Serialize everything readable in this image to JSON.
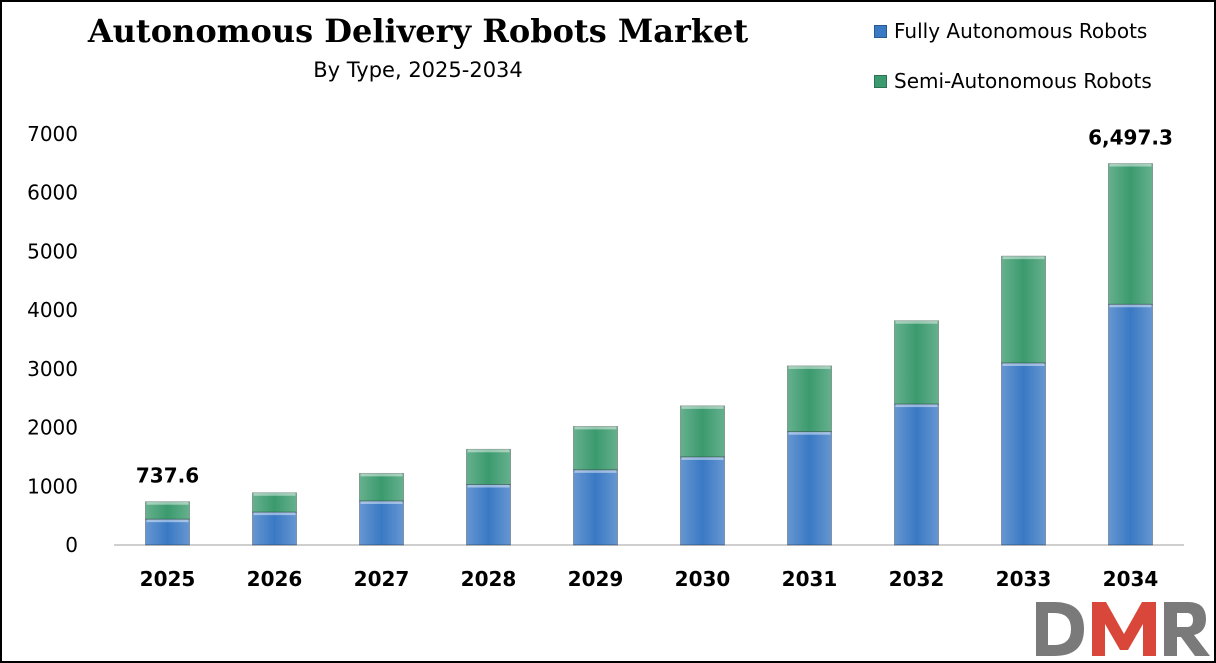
{
  "title": "Autonomous Delivery Robots Market",
  "subtitle": "By Type, 2025-2034",
  "legend": [
    {
      "label": "Fully Autonomous Robots",
      "color": "#3a79c4"
    },
    {
      "label": "Semi-Autonomous Robots",
      "color": "#3b9a6e"
    }
  ],
  "logo": {
    "text": "DMR",
    "colors": [
      "#7a7a7a",
      "#d9463a"
    ]
  },
  "chart_data": {
    "type": "bar",
    "stacked": true,
    "categories": [
      "2025",
      "2026",
      "2027",
      "2028",
      "2029",
      "2030",
      "2031",
      "2032",
      "2033",
      "2034"
    ],
    "series": [
      {
        "name": "Fully Autonomous Robots",
        "color": "#3a79c4",
        "values": [
          440,
          560,
          750,
          1030,
          1280,
          1500,
          1930,
          2400,
          3100,
          4100
        ]
      },
      {
        "name": "Semi-Autonomous Robots",
        "color": "#3b9a6e",
        "values": [
          297.6,
          330,
          470,
          600,
          740,
          870,
          1120,
          1420,
          1820,
          2397.3
        ]
      }
    ],
    "data_labels": [
      {
        "category": "2025",
        "text": "737.6"
      },
      {
        "category": "2034",
        "text": "6,497.3"
      }
    ],
    "ylim": [
      0,
      7000
    ],
    "yticks": [
      0,
      1000,
      2000,
      3000,
      4000,
      5000,
      6000,
      7000
    ],
    "grid": false,
    "legend_position": "top-right"
  }
}
